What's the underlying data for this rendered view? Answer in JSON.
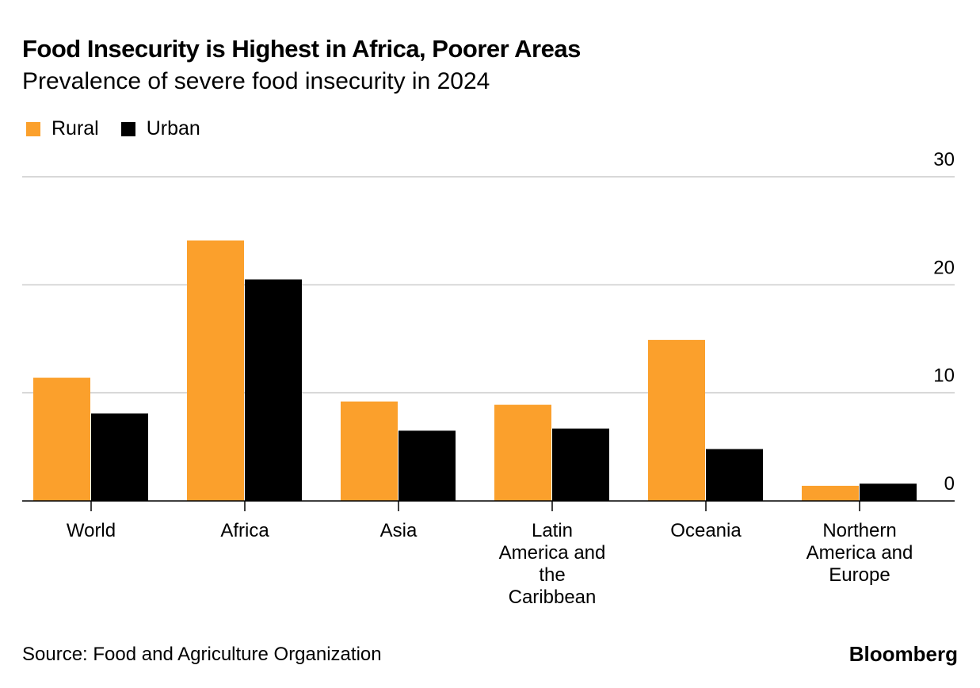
{
  "title": "Food Insecurity is Highest in Africa, Poorer Areas",
  "subtitle": "Prevalence of severe food insecurity in 2024",
  "source": "Source: Food and Agriculture Organization",
  "brand": "Bloomberg",
  "chart_data": {
    "type": "bar",
    "title": "Food Insecurity is Highest in Africa, Poorer Areas",
    "subtitle": "Prevalence of severe food insecurity in 2024",
    "categories": [
      "World",
      "Africa",
      "Asia",
      "Latin America and the Caribbean",
      "Oceania",
      "Northern America and Europe"
    ],
    "category_lines": [
      [
        "World"
      ],
      [
        "Africa"
      ],
      [
        "Asia"
      ],
      [
        "Latin",
        "America and",
        "the",
        "Caribbean"
      ],
      [
        "Oceania"
      ],
      [
        "Northern",
        "America and",
        "Europe"
      ]
    ],
    "series": [
      {
        "name": "Rural",
        "color": "#fba02c",
        "values": [
          11.4,
          24.1,
          9.2,
          8.9,
          14.9,
          1.4
        ]
      },
      {
        "name": "Urban",
        "color": "#000000",
        "values": [
          8.1,
          20.5,
          6.5,
          6.7,
          4.8,
          1.6
        ]
      }
    ],
    "ylim": [
      0,
      30
    ],
    "yticks": [
      0,
      10,
      20,
      30
    ],
    "y_axis_side": "right",
    "grid": true,
    "legend": "top-left",
    "xlabel": "",
    "ylabel": ""
  }
}
